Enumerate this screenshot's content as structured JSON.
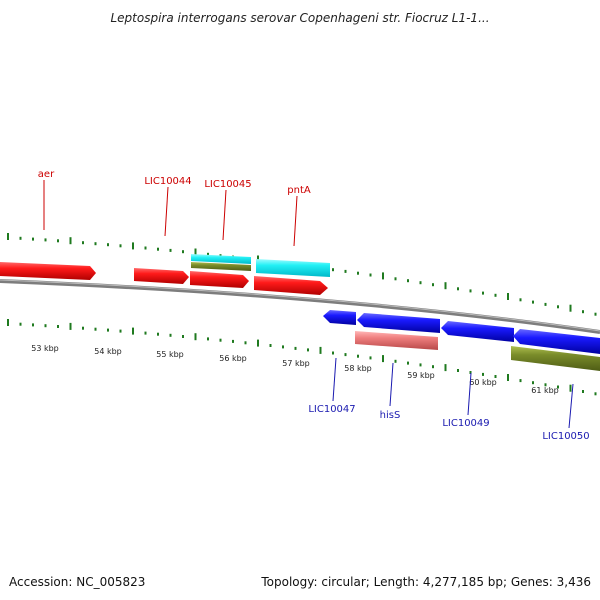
{
  "title": "Leptospira interrogans serovar Copenhageni str. Fiocruz L1-1...",
  "footer": {
    "accession": "Accession: NC_005823",
    "topology": "Topology: circular; Length: 4,277,185 bp; Genes: 3,436"
  },
  "colors": {
    "forward_label": "#cc0000",
    "reverse_label": "#1a1ab0",
    "tick": "#1f7a1f",
    "backbone": "#808080"
  },
  "kbp_labels": [
    "53 kbp",
    "54 kbp",
    "55 kbp",
    "56 kbp",
    "57 kbp",
    "58 kbp",
    "59 kbp",
    "60 kbp",
    "61 kbp"
  ],
  "gene_labels": {
    "forward": [
      "aer",
      "LIC10044",
      "LIC10045",
      "pntA"
    ],
    "reverse": [
      "LIC10047",
      "hisS",
      "LIC10049",
      "LIC10050"
    ]
  }
}
